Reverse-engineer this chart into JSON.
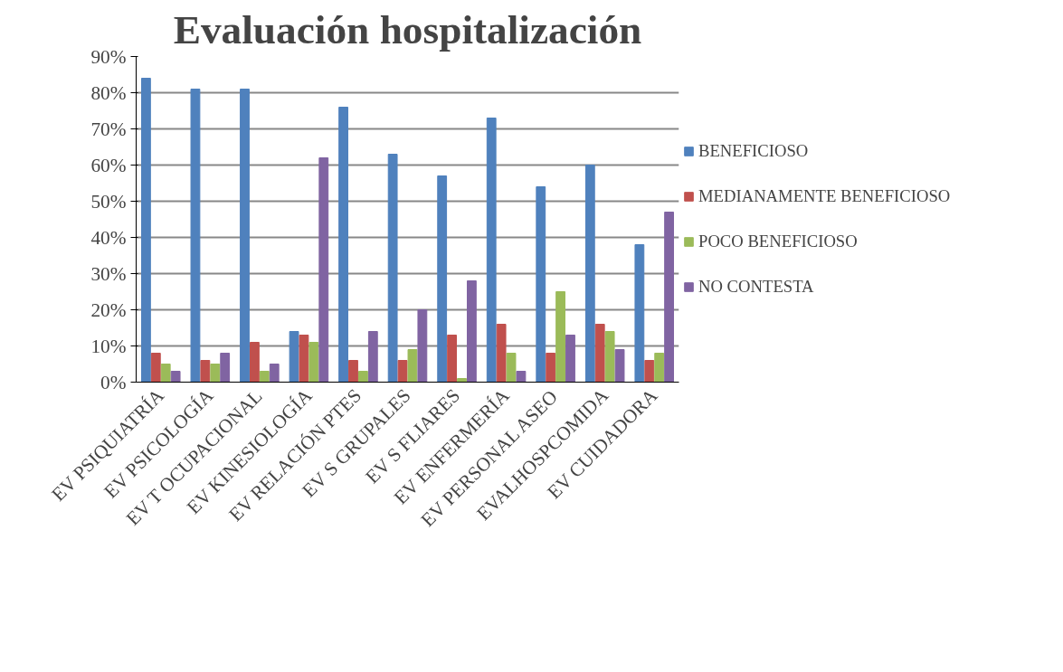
{
  "chart_data": {
    "type": "bar",
    "title": "Evaluación hospitalización",
    "categories": [
      "EV PSIQUIATRÍA",
      "EV PSICOLOGÍA",
      "EV T OCUPACIONAL",
      "EV KINESIOLOGÍA",
      "EV RELACIÓN PTES",
      "EV S GRUPALES",
      "EV S FLIARES",
      "EV ENFERMERÍA",
      "EV PERSONAL ASEO",
      "EVALHOSPCOMIDA",
      "EV CUIDADORA"
    ],
    "series": [
      {
        "name": "BENEFICIOSO",
        "color": "#4f81bd",
        "values": [
          84,
          81,
          81,
          14,
          76,
          63,
          57,
          73,
          54,
          60,
          38
        ]
      },
      {
        "name": "MEDIANAMENTE BENEFICIOSO",
        "color": "#c0504d",
        "values": [
          8,
          6,
          11,
          13,
          6,
          6,
          13,
          16,
          8,
          16,
          6
        ]
      },
      {
        "name": "POCO BENEFICIOSO",
        "color": "#9bbb59",
        "values": [
          5,
          5,
          3,
          11,
          3,
          9,
          1,
          8,
          25,
          14,
          8
        ]
      },
      {
        "name": "NO CONTESTA",
        "color": "#8064a2",
        "values": [
          3,
          8,
          5,
          62,
          14,
          20,
          28,
          3,
          13,
          9,
          47
        ]
      }
    ],
    "ylim": [
      0,
      90
    ],
    "yticks": [
      {
        "value": 0,
        "label": "0%"
      },
      {
        "value": 10,
        "label": "10%"
      },
      {
        "value": 20,
        "label": "20%"
      },
      {
        "value": 30,
        "label": "30%"
      },
      {
        "value": 40,
        "label": "40%"
      },
      {
        "value": 50,
        "label": "50%"
      },
      {
        "value": 60,
        "label": "60%"
      },
      {
        "value": 70,
        "label": "70%"
      },
      {
        "value": 80,
        "label": "80%"
      },
      {
        "value": 90,
        "label": "90%"
      }
    ],
    "grid": "y",
    "legend": "right"
  }
}
